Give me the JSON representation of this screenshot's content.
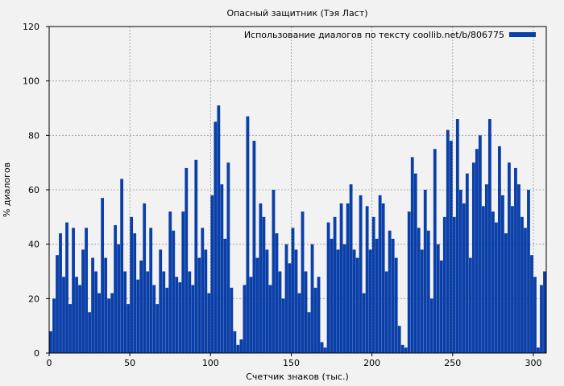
{
  "chart_data": {
    "type": "bar",
    "title": "Опасный защитник (Тэя Ласт)",
    "xlabel": "Счетчик знаков (тыс.)",
    "ylabel": "% диалогов",
    "xlim": [
      0,
      308
    ],
    "ylim": [
      0,
      120
    ],
    "xticks": [
      0,
      50,
      100,
      150,
      200,
      250,
      300
    ],
    "yticks": [
      0,
      20,
      40,
      60,
      80,
      100,
      120
    ],
    "grid": true,
    "legend_position": "top-right",
    "series": [
      {
        "name": "Использование диалогов по тексту coollib.net/b/806775",
        "color": "#0b3fa8",
        "x": [
          1,
          3,
          5,
          7,
          9,
          11,
          13,
          15,
          17,
          19,
          21,
          23,
          25,
          27,
          29,
          31,
          33,
          35,
          37,
          39,
          41,
          43,
          45,
          47,
          49,
          51,
          53,
          55,
          57,
          59,
          61,
          63,
          65,
          67,
          69,
          71,
          73,
          75,
          77,
          79,
          81,
          83,
          85,
          87,
          89,
          91,
          93,
          95,
          97,
          99,
          101,
          103,
          105,
          107,
          109,
          111,
          113,
          115,
          117,
          119,
          121,
          123,
          125,
          127,
          129,
          131,
          133,
          135,
          137,
          139,
          141,
          143,
          145,
          147,
          149,
          151,
          153,
          155,
          157,
          159,
          161,
          163,
          165,
          167,
          169,
          171,
          173,
          175,
          177,
          179,
          181,
          183,
          185,
          187,
          189,
          191,
          193,
          195,
          197,
          199,
          201,
          203,
          205,
          207,
          209,
          211,
          213,
          215,
          217,
          219,
          221,
          223,
          225,
          227,
          229,
          231,
          233,
          235,
          237,
          239,
          241,
          243,
          245,
          247,
          249,
          251,
          253,
          255,
          257,
          259,
          261,
          263,
          265,
          267,
          269,
          271,
          273,
          275,
          277,
          279,
          281,
          283,
          285,
          287,
          289,
          291,
          293,
          295,
          297,
          299,
          301,
          303,
          305,
          307
        ],
        "values": [
          8,
          20,
          36,
          44,
          28,
          48,
          18,
          46,
          28,
          25,
          38,
          46,
          15,
          35,
          30,
          22,
          57,
          35,
          20,
          22,
          47,
          40,
          64,
          30,
          18,
          50,
          44,
          27,
          34,
          55,
          30,
          46,
          25,
          18,
          38,
          30,
          24,
          52,
          45,
          28,
          26,
          52,
          68,
          30,
          25,
          71,
          35,
          46,
          38,
          22,
          58,
          85,
          91,
          62,
          42,
          70,
          24,
          8,
          3,
          5,
          25,
          87,
          28,
          78,
          35,
          55,
          50,
          38,
          25,
          60,
          44,
          30,
          20,
          40,
          33,
          46,
          38,
          22,
          52,
          30,
          15,
          40,
          24,
          28,
          4,
          2,
          48,
          42,
          50,
          38,
          55,
          40,
          55,
          62,
          38,
          35,
          58,
          22,
          54,
          38,
          50,
          42,
          58,
          55,
          30,
          45,
          42,
          35,
          10,
          3,
          2,
          52,
          72,
          66,
          46,
          38,
          60,
          45,
          20,
          75,
          40,
          34,
          50,
          82,
          78,
          50,
          86,
          60,
          55,
          66,
          35,
          70,
          75,
          80,
          54,
          62,
          86,
          52,
          48,
          76,
          58,
          44,
          70,
          54,
          68,
          62,
          50,
          46,
          60,
          36,
          28,
          2,
          25,
          30
        ]
      }
    ]
  }
}
